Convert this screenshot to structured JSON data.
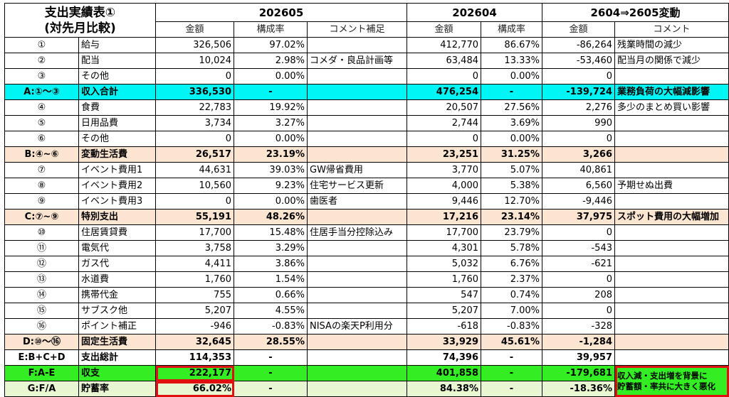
{
  "title": {
    "line1": "支出実績表①",
    "line2": "(対先月比較)"
  },
  "periods": {
    "p1": "202605",
    "p2": "202604",
    "diff": "2604⇒2605変動"
  },
  "col_headers": {
    "amount1": "金額",
    "ratio1": "構成率",
    "comment1": "コメント補足",
    "amount2": "金額",
    "ratio2": "構成率",
    "amount3": "金額",
    "comment3": "コメント"
  },
  "rows": [
    {
      "id": "①",
      "name": "給与",
      "a1": "326,506",
      "r1": "97.02%",
      "c1": "",
      "a2": "412,770",
      "r2": "86.67%",
      "d": "-86,264",
      "dc": "残業時間の減少"
    },
    {
      "id": "②",
      "name": "配当",
      "a1": "10,024",
      "r1": "2.98%",
      "c1": "コメダ・良品計画等",
      "a2": "63,484",
      "r2": "13.33%",
      "d": "-53,460",
      "dc": "配当月の関係で減少"
    },
    {
      "id": "③",
      "name": "その他",
      "a1": "0",
      "r1": "0.00%",
      "c1": "",
      "a2": "0",
      "r2": "0.00%",
      "d": "0",
      "dc": ""
    },
    {
      "id": "A:①～③",
      "name": "収入合計",
      "a1": "336,530",
      "r1": "-",
      "c1": "",
      "a2": "476,254",
      "r2": "-",
      "d": "-139,724",
      "dc": "業務負荷の大幅減影響"
    },
    {
      "id": "④",
      "name": "食費",
      "a1": "22,783",
      "r1": "19.92%",
      "c1": "",
      "a2": "20,507",
      "r2": "27.56%",
      "d": "2,276",
      "dc": "多少のまとめ買い影響"
    },
    {
      "id": "⑤",
      "name": "日用品費",
      "a1": "3,734",
      "r1": "3.27%",
      "c1": "",
      "a2": "2,744",
      "r2": "3.69%",
      "d": "990",
      "dc": ""
    },
    {
      "id": "⑥",
      "name": "その他",
      "a1": "0",
      "r1": "0.00%",
      "c1": "",
      "a2": "0",
      "r2": "0.00%",
      "d": "0",
      "dc": ""
    },
    {
      "id": "B:④~⑥",
      "name": "変動生活費",
      "a1": "26,517",
      "r1": "23.19%",
      "c1": "",
      "a2": "23,251",
      "r2": "31.25%",
      "d": "3,266",
      "dc": ""
    },
    {
      "id": "⑦",
      "name": "イベント費用1",
      "a1": "44,631",
      "r1": "39.03%",
      "c1": "GW帰省費用",
      "a2": "3,770",
      "r2": "5.07%",
      "d": "40,861",
      "dc": ""
    },
    {
      "id": "⑧",
      "name": "イベント費用2",
      "a1": "10,560",
      "r1": "9.23%",
      "c1": "住宅サービス更新",
      "a2": "4,000",
      "r2": "5.38%",
      "d": "6,560",
      "dc": "予期せぬ出費"
    },
    {
      "id": "⑨",
      "name": "イベント費用3",
      "a1": "0",
      "r1": "0.00%",
      "c1": "歯医者",
      "a2": "9,446",
      "r2": "12.70%",
      "d": "-9,446",
      "dc": ""
    },
    {
      "id": "C:⑦~⑨",
      "name": "特別支出",
      "a1": "55,191",
      "r1": "48.26%",
      "c1": "",
      "a2": "17,216",
      "r2": "23.14%",
      "d": "37,975",
      "dc": "スポット費用の大幅増加"
    },
    {
      "id": "⑩",
      "name": "住居賃貸費",
      "a1": "17,700",
      "r1": "15.48%",
      "c1": "住居手当分控除込み",
      "a2": "17,700",
      "r2": "23.79%",
      "d": "0",
      "dc": ""
    },
    {
      "id": "⑪",
      "name": "電気代",
      "a1": "3,758",
      "r1": "3.29%",
      "c1": "",
      "a2": "4,301",
      "r2": "5.78%",
      "d": "-543",
      "dc": ""
    },
    {
      "id": "⑫",
      "name": "ガス代",
      "a1": "4,411",
      "r1": "3.86%",
      "c1": "",
      "a2": "5,032",
      "r2": "6.76%",
      "d": "-621",
      "dc": ""
    },
    {
      "id": "⑬",
      "name": "水道費",
      "a1": "1,760",
      "r1": "1.54%",
      "c1": "",
      "a2": "1,760",
      "r2": "2.37%",
      "d": "0",
      "dc": ""
    },
    {
      "id": "⑭",
      "name": "携帯代金",
      "a1": "755",
      "r1": "0.66%",
      "c1": "",
      "a2": "547",
      "r2": "0.74%",
      "d": "208",
      "dc": ""
    },
    {
      "id": "⑮",
      "name": "サブスク他",
      "a1": "5,207",
      "r1": "4.55%",
      "c1": "",
      "a2": "5,207",
      "r2": "7.00%",
      "d": "0",
      "dc": ""
    },
    {
      "id": "⑯",
      "name": "ポイント補正",
      "a1": "-946",
      "r1": "-0.83%",
      "c1": "NISAの楽天P利用分",
      "a2": "-618",
      "r2": "-0.83%",
      "d": "-328",
      "dc": ""
    },
    {
      "id": "D:⑩～⑯",
      "name": "固定生活費",
      "a1": "32,645",
      "r1": "28.55%",
      "c1": "",
      "a2": "33,929",
      "r2": "45.61%",
      "d": "-1,284",
      "dc": ""
    },
    {
      "id": "E:B+C+D",
      "name": "支出総計",
      "a1": "114,353",
      "r1": "-",
      "c1": "",
      "a2": "74,396",
      "r2": "-",
      "d": "39,957",
      "dc": ""
    },
    {
      "id": "F:A-E",
      "name": "収支",
      "a1": "222,177",
      "r1": "-",
      "c1": "",
      "a2": "401,858",
      "r2": "-",
      "d": "-179,681",
      "dc": ""
    },
    {
      "id": "G:F/A",
      "name": "貯蓄率",
      "a1": "66.02%",
      "r1": "-",
      "c1": "",
      "a2": "84.38%",
      "r2": "-",
      "d": "-18.36%",
      "dc": ""
    }
  ],
  "bottom_note": {
    "line1": "収入減・支出増を背景に",
    "line2": "貯蓄額・率共に大きく悪化"
  },
  "colors": {
    "income_total": "#00f5f5",
    "subtotal": "#fbe4d0",
    "balance": "#33ee22",
    "savings": "#e8f7d2",
    "highlight_box": "#e01010"
  }
}
